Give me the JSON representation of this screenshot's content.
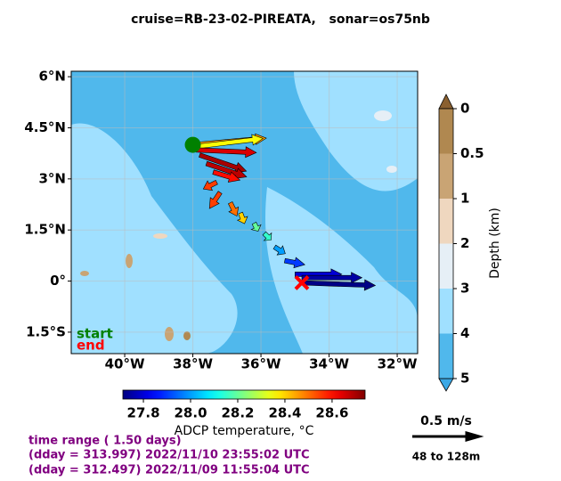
{
  "title": "cruise=RB-23-02-PIREATA,   sonar=os75nb",
  "map": {
    "xlim": [
      -41.57,
      -31.4
    ],
    "ylim": [
      -2.13,
      6.16
    ],
    "xticks": [
      {
        "value": -40,
        "label": "40°W"
      },
      {
        "value": -38,
        "label": "38°W"
      },
      {
        "value": -36,
        "label": "36°W"
      },
      {
        "value": -34,
        "label": "34°W"
      },
      {
        "value": -32,
        "label": "32°W"
      }
    ],
    "yticks": [
      {
        "value": 6,
        "label": "6°N"
      },
      {
        "value": 4.5,
        "label": "4.5°N"
      },
      {
        "value": 3,
        "label": "3°N"
      },
      {
        "value": 1.5,
        "label": "1.5°N"
      },
      {
        "value": 0,
        "label": "0°"
      },
      {
        "value": -1.5,
        "label": "1.5°S"
      }
    ],
    "grid": true,
    "start_label": "start",
    "start_color": "#008000",
    "end_label": "end",
    "end_color": "#ff0000",
    "vectors": {
      "lon": [
        -38.0,
        -37.9,
        -37.9,
        -37.8,
        -37.6,
        -37.4,
        -37.3,
        -37.2,
        -36.9,
        -36.6,
        -36.2,
        -35.9,
        -35.6,
        -35.3,
        -35.0,
        -34.8,
        -34.8
      ],
      "lat": [
        4.0,
        3.95,
        3.85,
        3.7,
        3.45,
        3.2,
        2.9,
        2.6,
        2.3,
        2.0,
        1.7,
        1.4,
        1.0,
        0.6,
        0.2,
        0.1,
        -0.05
      ],
      "u": [
        0.55,
        0.5,
        0.45,
        0.35,
        0.3,
        0.2,
        -0.1,
        -0.08,
        0.05,
        0.03,
        0.03,
        0.05,
        0.08,
        0.15,
        0.35,
        0.45,
        0.55
      ],
      "v": [
        0.05,
        0.06,
        -0.02,
        -0.12,
        -0.1,
        -0.06,
        -0.05,
        -0.12,
        -0.1,
        -0.08,
        -0.06,
        -0.05,
        -0.05,
        -0.03,
        0.0,
        0.0,
        -0.02
      ],
      "temperature": [
        28.45,
        28.35,
        28.65,
        28.7,
        28.68,
        28.6,
        28.55,
        28.55,
        28.5,
        28.4,
        28.2,
        28.15,
        28.0,
        27.9,
        27.8,
        27.75,
        27.72
      ]
    }
  },
  "temperature_colorbar": {
    "label": "ADCP temperature, °C",
    "xlim": [
      27.713,
      28.74
    ],
    "xticks": [
      27.8,
      {
        "value": 28,
        "label": "28.0"
      },
      28.2,
      28.4,
      28.6
    ]
  },
  "depth_colorbar": {
    "label": "Depth (km)",
    "levels": [
      0,
      0.5,
      1,
      2,
      3,
      4,
      5
    ],
    "ticks": [
      0,
      0.5,
      1,
      2,
      3,
      4,
      5
    ],
    "colors": [
      "#b08850",
      "#c9a474",
      "#efd7bf",
      "#e6eff6",
      "#a0e0ff",
      "#50b8ec"
    ],
    "extend_colors": [
      "#8a6030",
      "#3aa8e6"
    ]
  },
  "reference": {
    "speed": {
      "value": 0.5,
      "label": "0.5 m/s"
    },
    "depth_range": "48 to 128m"
  },
  "time_info": [
    "time range ( 1.50 days)",
    "(dday = 313.997) 2022/11/10 23:55:02 UTC",
    "(dday = 312.497) 2022/11/09 11:55:04 UTC"
  ]
}
